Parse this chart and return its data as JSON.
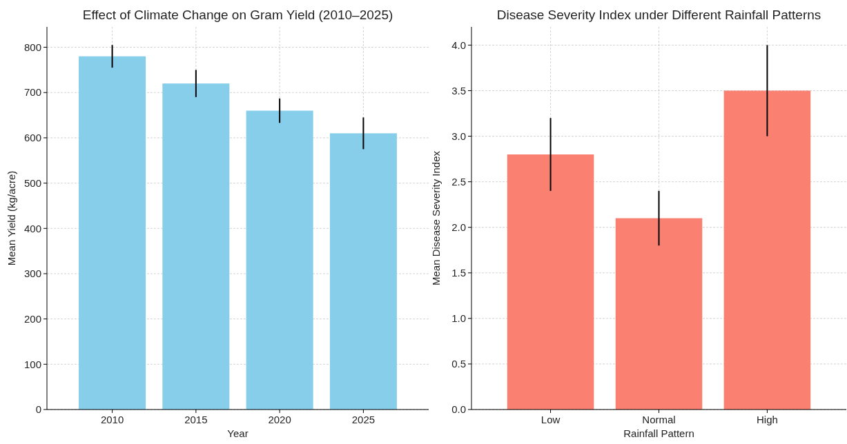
{
  "chart_data": [
    {
      "type": "bar",
      "title": "Effect of Climate Change on Gram Yield (2010–2025)",
      "xlabel": "Year",
      "ylabel": "Mean Yield (kg/acre)",
      "categories": [
        "2010",
        "2015",
        "2020",
        "2025"
      ],
      "values": [
        780,
        720,
        660,
        610
      ],
      "errors": [
        25,
        30,
        27,
        35
      ],
      "color": "#87ceeb",
      "ylim": [
        0,
        845
      ],
      "yticks": [
        0,
        100,
        200,
        300,
        400,
        500,
        600,
        700,
        800
      ],
      "grid": true
    },
    {
      "type": "bar",
      "title": "Disease Severity Index under Different Rainfall Patterns",
      "xlabel": "Rainfall Pattern",
      "ylabel": "Mean Disease Severity Index",
      "categories": [
        "Low",
        "Normal",
        "High"
      ],
      "values": [
        2.8,
        2.1,
        3.5
      ],
      "errors": [
        0.4,
        0.3,
        0.5
      ],
      "color": "#fa8072",
      "ylim": [
        0,
        4.2
      ],
      "yticks": [
        {
          "value": 0,
          "label": "0.0"
        },
        {
          "value": 0.5,
          "label": "0.5"
        },
        {
          "value": 1,
          "label": "1.0"
        },
        {
          "value": 1.5,
          "label": "1.5"
        },
        {
          "value": 2,
          "label": "2.0"
        },
        {
          "value": 2.5,
          "label": "2.5"
        },
        {
          "value": 3,
          "label": "3.0"
        },
        {
          "value": 3.5,
          "label": "3.5"
        },
        {
          "value": 4,
          "label": "4.0"
        }
      ],
      "grid": true
    }
  ]
}
